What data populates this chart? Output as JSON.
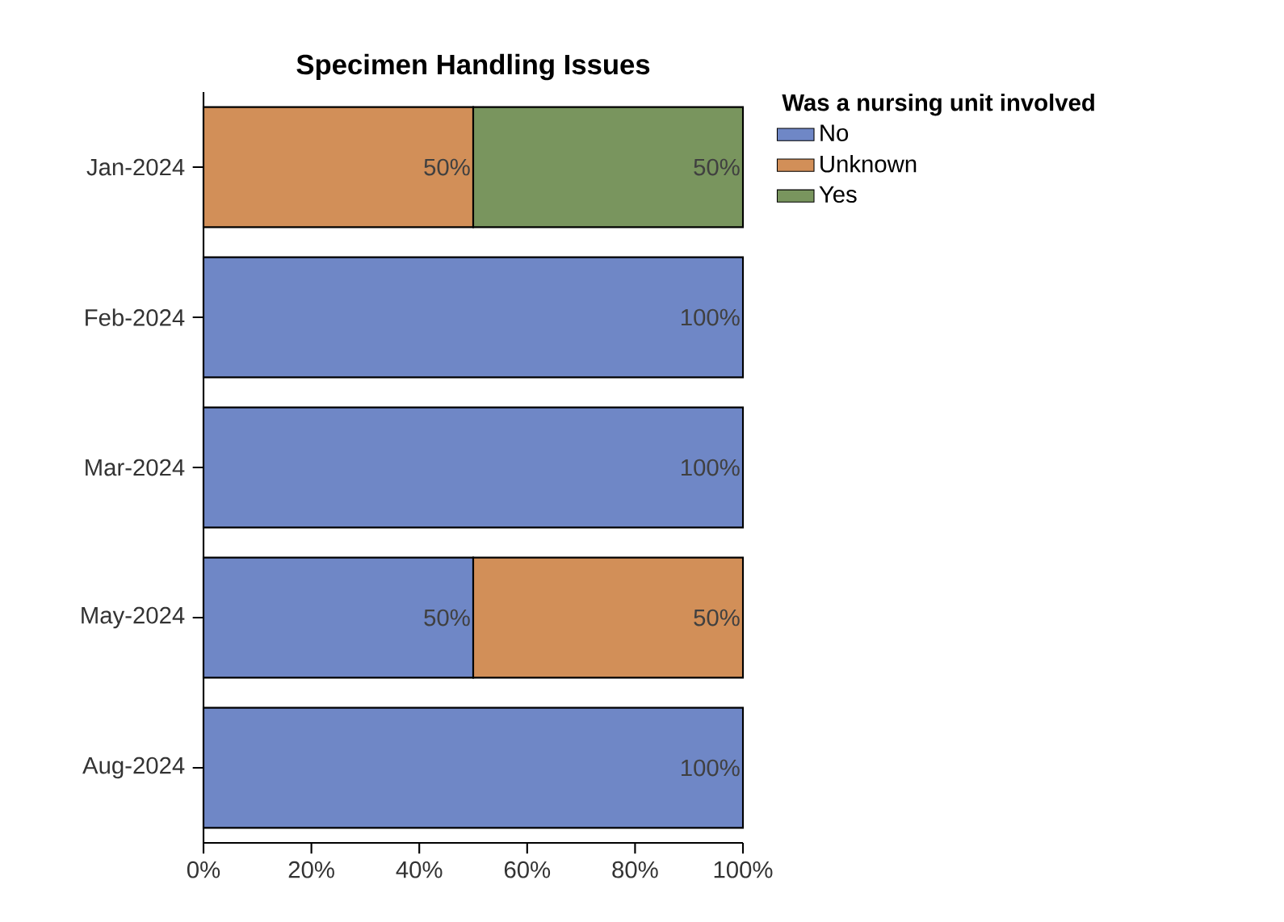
{
  "chart_data": {
    "type": "bar",
    "orientation": "horizontal",
    "stacked": true,
    "title": "Specimen Handling Issues",
    "legend_title": "Was a nursing unit involved",
    "legend": "top right",
    "categories": [
      "Jan-2024",
      "Feb-2024",
      "Mar-2024",
      "May-2024",
      "Aug-2024"
    ],
    "series": [
      {
        "name": "No",
        "color": "#6f87c6",
        "values": [
          0,
          100,
          100,
          50,
          100
        ],
        "value_labels": [
          null,
          "100%",
          "100%",
          "50%",
          "100%"
        ]
      },
      {
        "name": "Unknown",
        "color": "#d28f58",
        "values": [
          50,
          0,
          0,
          50,
          0
        ],
        "value_labels": [
          "50%",
          null,
          null,
          "50%",
          null
        ]
      },
      {
        "name": "Yes",
        "color": "#79955e",
        "values": [
          50,
          0,
          0,
          0,
          0
        ],
        "value_labels": [
          "50%",
          null,
          null,
          null,
          null
        ]
      }
    ],
    "xlim": [
      0,
      100
    ],
    "xticks": [
      {
        "value": 0,
        "label": "0%"
      },
      {
        "value": 20,
        "label": "20%"
      },
      {
        "value": 40,
        "label": "40%"
      },
      {
        "value": 60,
        "label": "60%"
      },
      {
        "value": 80,
        "label": "80%"
      },
      {
        "value": 100,
        "label": "100%"
      }
    ],
    "grid": false
  }
}
